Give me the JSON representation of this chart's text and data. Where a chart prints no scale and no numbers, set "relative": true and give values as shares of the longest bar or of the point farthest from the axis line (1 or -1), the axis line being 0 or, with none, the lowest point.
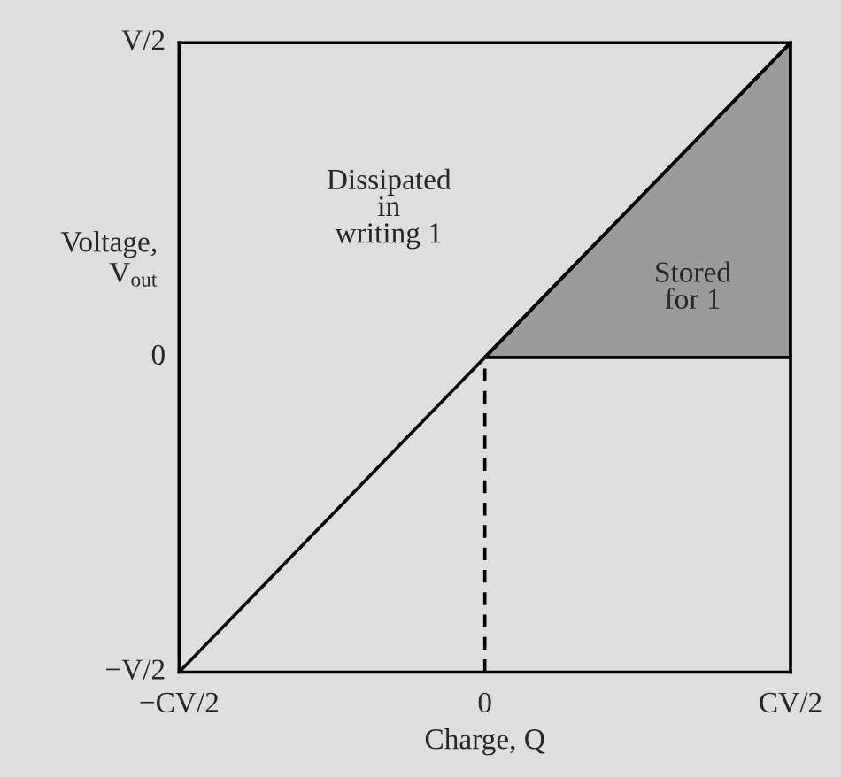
{
  "chart_data": {
    "type": "line",
    "relative": true,
    "xlabel": "Charge, Q",
    "ylabel": "Voltage,\nV$_{out}$",
    "categories": [
      "−CV/2",
      "0",
      "CV/2"
    ],
    "series": [
      {
        "color": "#000000",
        "values": [
          0,
          0.5,
          1
        ],
        "lower": [
          null,
          0.5,
          0.5
        ],
        "upper": [
          null,
          0.5,
          1
        ]
      },
      {
        "color": "#000000",
        "line_style": "dashed",
        "x": [
          "0",
          "0"
        ],
        "values": [
          0,
          0.5
        ]
      }
    ],
    "annotations": [
      "Dissipated\nin\nwriting 1",
      "Stored\nfor 1",
      "V/2",
      "0",
      "−V/2"
    ],
    "grid": false
  }
}
